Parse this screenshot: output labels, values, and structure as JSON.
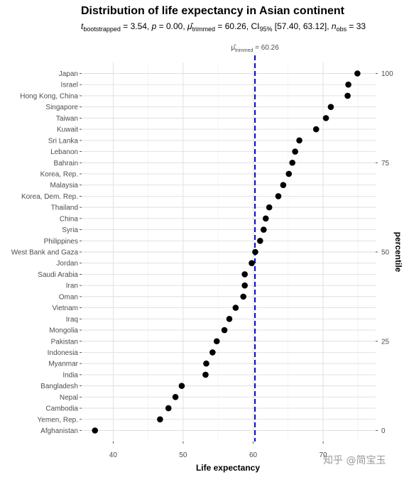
{
  "chart_data": {
    "type": "scatter",
    "title": "Distribution of life expectancy in Asian continent",
    "subtitle": {
      "t_label": "t",
      "t_sub": "bootstrapped",
      "t_value": " = 3.54, ",
      "p_label": "p",
      "p_value": " = 0.00, ",
      "mu_label": "μ̂",
      "mu_sub": "trimmed",
      "mu_value": " = 60.26, CI",
      "ci_sub": "95%",
      "ci_value": " [57.40, 63.12], ",
      "n_label": "n",
      "n_sub": "obs",
      "n_value": " = 33"
    },
    "annotation": {
      "label": "μ̂",
      "sub": "trimmed",
      "value": " = 60.26",
      "x": 60.26
    },
    "xlabel": "Life expectancy",
    "ylabel_right": "percentile",
    "xlim": [
      35.5,
      77.5
    ],
    "xticks": [
      40,
      50,
      60,
      70
    ],
    "yticks_right": [
      0,
      25,
      50,
      75,
      100
    ],
    "grid": true,
    "categories": [
      "Afghanistan",
      "Yemen, Rep.",
      "Cambodia",
      "Nepal",
      "Bangladesh",
      "India",
      "Myanmar",
      "Indonesia",
      "Pakistan",
      "Mongolia",
      "Iraq",
      "Vietnam",
      "Oman",
      "Iran",
      "Saudi Arabia",
      "Jordan",
      "West Bank and Gaza",
      "Philippines",
      "Syria",
      "China",
      "Thailand",
      "Korea, Dem. Rep.",
      "Malaysia",
      "Korea, Rep.",
      "Bahrain",
      "Lebanon",
      "Sri Lanka",
      "Kuwait",
      "Taiwan",
      "Singapore",
      "Hong Kong, China",
      "Israel",
      "Japan"
    ],
    "values": [
      37.4,
      46.7,
      47.9,
      48.9,
      49.8,
      53.2,
      53.3,
      54.2,
      54.8,
      55.9,
      56.6,
      57.5,
      58.6,
      58.8,
      58.8,
      59.8,
      60.3,
      61.0,
      61.5,
      61.8,
      62.3,
      63.6,
      64.3,
      65.1,
      65.6,
      66.0,
      66.6,
      69.0,
      70.4,
      71.1,
      73.5,
      73.6,
      74.9
    ],
    "colors": {
      "points": "#000000",
      "mean_line": "#0000cd",
      "grid_major": "#dedede",
      "grid_minor": "#efefef"
    }
  },
  "watermark": "知乎 @简宝玉"
}
